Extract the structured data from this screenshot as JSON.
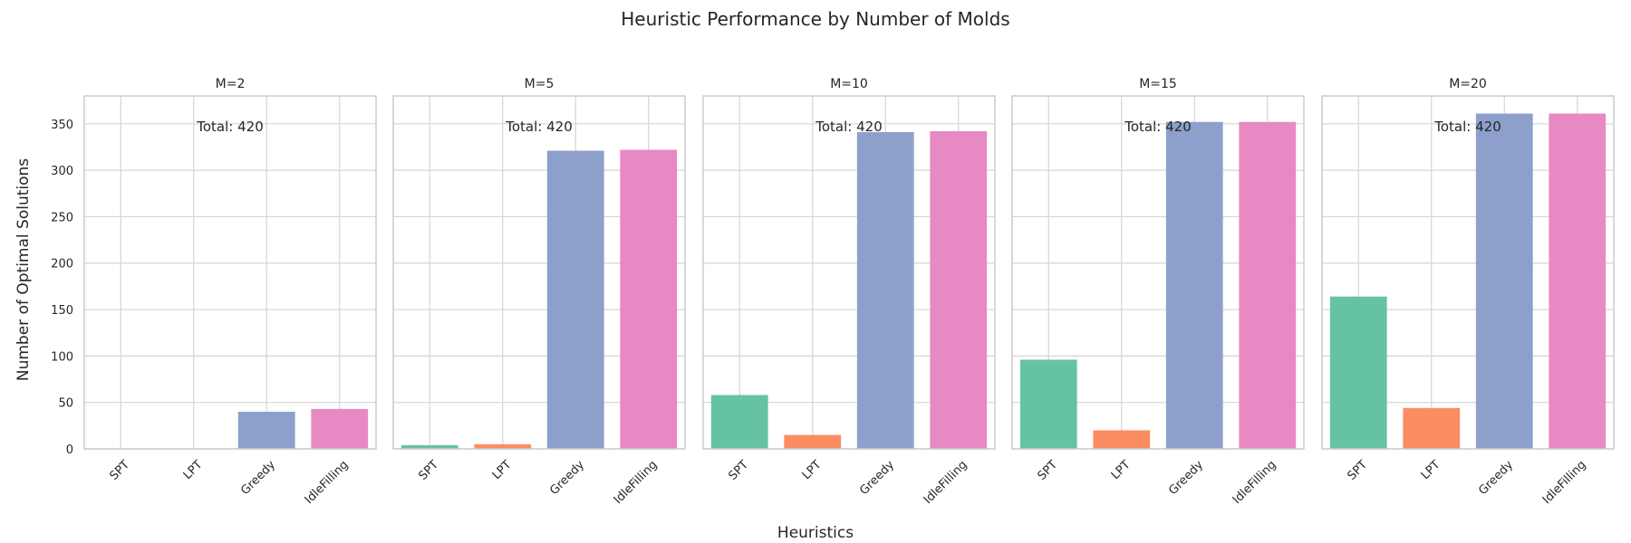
{
  "chart_data": {
    "type": "bar",
    "title": "Heuristic Performance by Number of Molds",
    "xlabel": "Heuristics",
    "ylabel": "Number of Optimal Solutions",
    "ylim": [
      0,
      380
    ],
    "yticks": [
      0,
      50,
      100,
      150,
      200,
      250,
      300,
      350
    ],
    "grid": true,
    "categories": [
      "SPT",
      "LPT",
      "Greedy",
      "IdleFilling"
    ],
    "colors": [
      "#66c2a5",
      "#fc8d62",
      "#8da0cb",
      "#e78ac3"
    ],
    "panels": [
      {
        "title": "M=2",
        "total_label": "Total: 420",
        "values": [
          0,
          0,
          40,
          43
        ]
      },
      {
        "title": "M=5",
        "total_label": "Total: 420",
        "values": [
          4,
          5,
          321,
          322
        ]
      },
      {
        "title": "M=10",
        "total_label": "Total: 420",
        "values": [
          58,
          15,
          341,
          342
        ]
      },
      {
        "title": "M=15",
        "total_label": "Total: 420",
        "values": [
          96,
          20,
          352,
          352
        ]
      },
      {
        "title": "M=20",
        "total_label": "Total: 420",
        "values": [
          164,
          44,
          361,
          361
        ]
      }
    ]
  }
}
